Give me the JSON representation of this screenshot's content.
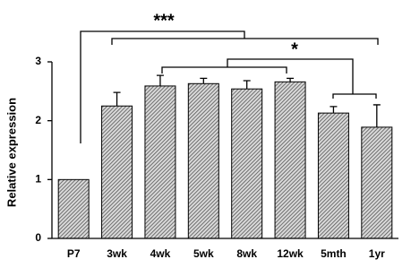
{
  "chart_data": {
    "type": "bar",
    "y_label": "Relative expression",
    "categories": [
      "P7",
      "3wk",
      "4wk",
      "5wk",
      "8wk",
      "12wk",
      "5mth",
      "1yr"
    ],
    "values": [
      1.0,
      2.25,
      2.59,
      2.63,
      2.54,
      2.66,
      2.13,
      1.89
    ],
    "errors": [
      0.0,
      0.23,
      0.18,
      0.09,
      0.14,
      0.06,
      0.11,
      0.38
    ],
    "color": "#6e6e6e",
    "ylim": [
      0,
      3
    ],
    "yticks": [
      0,
      1,
      2,
      3
    ],
    "annotations": [
      "***",
      "*"
    ]
  }
}
